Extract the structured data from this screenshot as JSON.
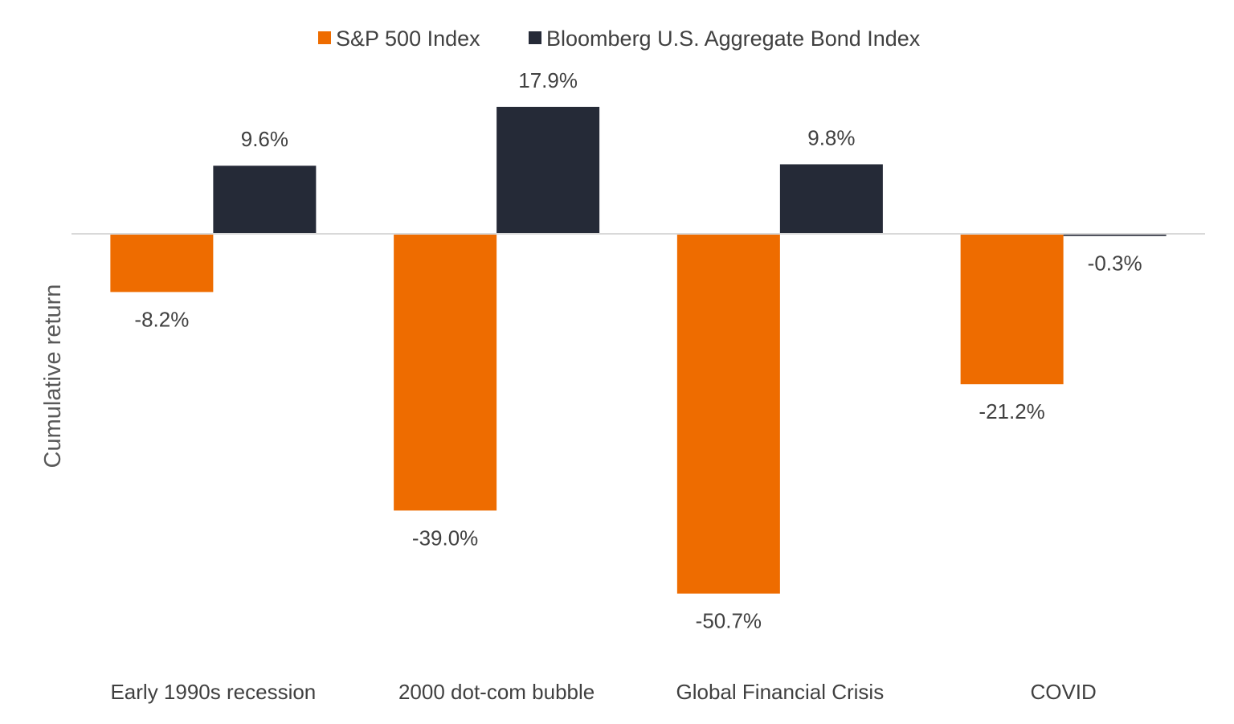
{
  "chart_data": {
    "type": "bar",
    "title": "",
    "xlabel": "",
    "ylabel": "Cumulative return",
    "categories": [
      "Early 1990s recession",
      "2000 dot-com bubble",
      "Global Financial Crisis",
      "COVID"
    ],
    "series": [
      {
        "name": "S&P 500 Index",
        "color": "#EE6C00",
        "values": [
          -8.2,
          -39.0,
          -50.7,
          -21.2
        ],
        "labels": [
          "-8.2%",
          "-39.0%",
          "-50.7%",
          "-21.2%"
        ]
      },
      {
        "name": "Bloomberg U.S. Aggregate Bond Index",
        "color": "#252A37",
        "values": [
          9.6,
          17.9,
          9.8,
          -0.3
        ],
        "labels": [
          "9.6%",
          "17.9%",
          "9.8%",
          "-0.3%"
        ]
      }
    ],
    "ylim": [
      -60,
      25
    ],
    "grid": false,
    "legend_position": "top-center"
  },
  "colors": {
    "axis_line": "#D9D9D9",
    "text": "#404040"
  }
}
